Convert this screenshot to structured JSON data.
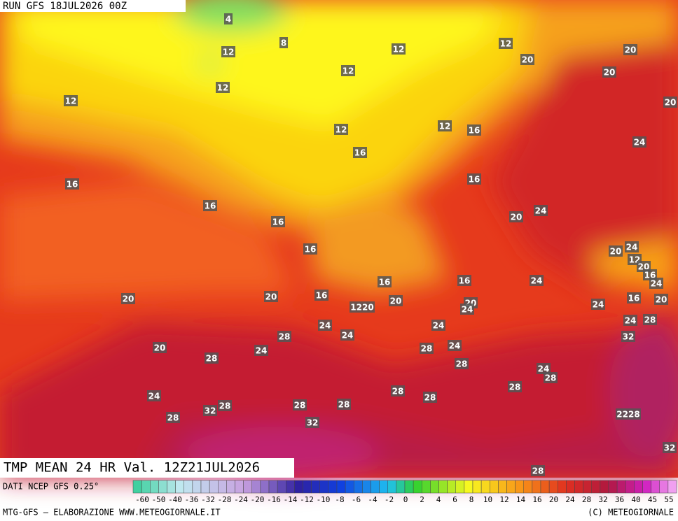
{
  "header": {
    "run": "RUN GFS 18JUL2026 00Z"
  },
  "map": {
    "title": "TMP MEAN 24 HR Val. 12Z21JUL2026",
    "labels": [
      "4",
      "8",
      "12",
      "12",
      "12",
      "12",
      "12",
      "12",
      "20",
      "20",
      "20",
      "20",
      "12",
      "12",
      "16",
      "16",
      "24",
      "16",
      "16",
      "16",
      "16",
      "24",
      "20",
      "16",
      "20",
      "24",
      "12",
      "20",
      "16",
      "24",
      "16",
      "16",
      "24",
      "20",
      "20",
      "16",
      "1220",
      "20",
      "20",
      "24",
      "24",
      "16",
      "20",
      "24",
      "24",
      "24",
      "28",
      "24",
      "28",
      "32",
      "20",
      "24",
      "28",
      "24",
      "28",
      "28",
      "24",
      "28",
      "28",
      "28",
      "24",
      "28",
      "28",
      "28",
      "32",
      "28",
      "28",
      "2228",
      "32",
      "32",
      "28"
    ]
  },
  "legend": {
    "source": "DATI NCEP GFS 0.25°",
    "ticks": [
      -60,
      -50,
      -40,
      -36,
      -32,
      -28,
      -24,
      -20,
      -16,
      -14,
      -12,
      -10,
      -8,
      -6,
      -4,
      -2,
      0,
      2,
      4,
      6,
      8,
      10,
      12,
      14,
      16,
      20,
      24,
      28,
      32,
      36,
      40,
      45,
      55
    ]
  },
  "footer": {
    "left": "MTG-GFS — ELABORAZIONE WWW.METEOGIORNALE.IT",
    "right": "(C) METEOGIORNALE"
  }
}
